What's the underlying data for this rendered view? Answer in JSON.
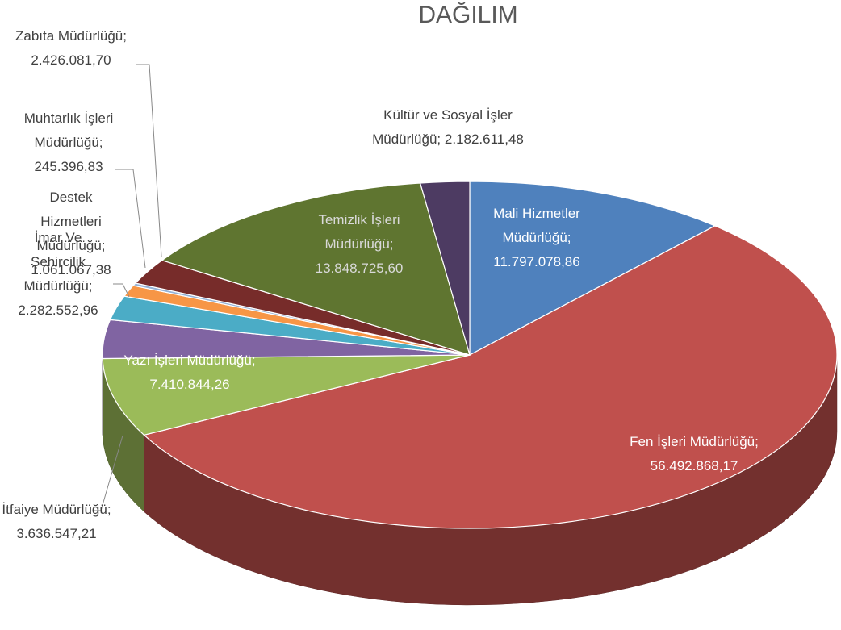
{
  "chart_data": {
    "type": "pie",
    "title": "DAĞILIM",
    "label_separator": ";",
    "categories": [
      "Mali Hizmetler Müdürlüğü",
      "Fen İşleri Müdürlüğü",
      "Yazı İşleri Müdürlüğü",
      "İtfaiye Müdürlüğü",
      "İmar Ve Şehircilik Müdürlüğü",
      "Destek Hizmetleri Müdürlüğü",
      "Muhtarlık İşleri Müdürlüğü",
      "Zabıta Müdürlüğü",
      "Temizlik İşleri Müdürlüğü",
      "Kültür ve Sosyal İşler Müdürlüğü"
    ],
    "values": [
      11797078.86,
      56492868.17,
      7410844.26,
      3636547.21,
      2282552.96,
      1061067.38,
      245396.83,
      2426081.7,
      13848725.6,
      2182611.48
    ],
    "value_labels": [
      "11.797.078,86",
      "56.492.868,17",
      "7.410.844,26",
      "3.636.547,21",
      "2.282.552,96",
      "1.061.067,38",
      "245.396,83",
      "2.426.081,70",
      "13.848.725,60",
      "2.182.611,48"
    ],
    "colors": [
      "#4f81bd",
      "#c0504d",
      "#9bbb59",
      "#8064a2",
      "#4bacc6",
      "#f79646",
      "#95b3d7",
      "#772c2a",
      "#5f7530",
      "#4d3b62"
    ]
  }
}
